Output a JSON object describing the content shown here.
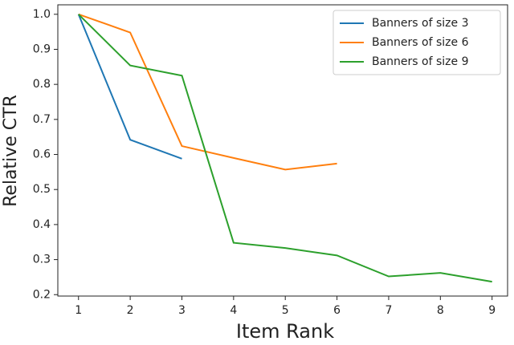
{
  "chart_data": {
    "type": "line",
    "xlabel": "Item Rank",
    "ylabel": "Relative CTR",
    "xlim": [
      0.6,
      9.3
    ],
    "ylim": [
      0.196,
      1.027
    ],
    "xticks": [
      1,
      2,
      3,
      4,
      5,
      6,
      7,
      8,
      9
    ],
    "yticks": [
      0.2,
      0.3,
      0.4,
      0.5,
      0.6,
      0.7,
      0.8,
      0.9,
      {
        "value": 1,
        "label": "1.0"
      }
    ],
    "legend": "upper right",
    "series": [
      {
        "name": "Banners of size 3",
        "color": "#1f77b4",
        "x": [
          1,
          2,
          3
        ],
        "values": [
          1.0,
          0.642,
          0.588
        ]
      },
      {
        "name": "Banners of size 6",
        "color": "#ff7f0e",
        "x": [
          1,
          2,
          3,
          4,
          5,
          6
        ],
        "values": [
          1.0,
          0.948,
          0.624,
          0.59,
          0.557,
          0.574
        ]
      },
      {
        "name": "Banners of size 9",
        "color": "#2ca02c",
        "x": [
          1,
          2,
          3,
          4,
          5,
          6,
          7,
          8,
          9
        ],
        "values": [
          1.0,
          0.854,
          0.825,
          0.348,
          0.333,
          0.312,
          0.252,
          0.262,
          0.237
        ]
      }
    ]
  }
}
